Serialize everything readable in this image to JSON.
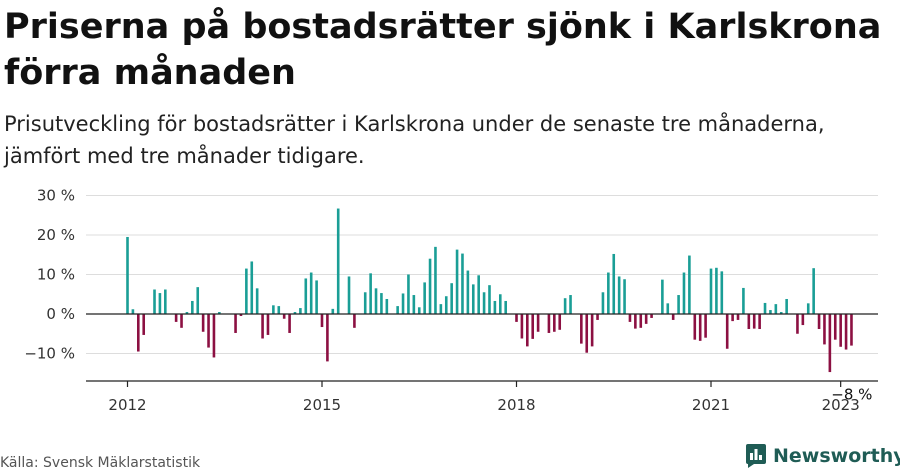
{
  "title": "Priserna på bostadsrätter sjönk i Karlskrona förra månaden",
  "subtitle": "Prisutveckling för bostadsrätter i Karlskrona under de senaste tre månaderna, jämfört med tre månader tidigare.",
  "source": "Källa: Svensk Mäklarstatistik",
  "logo": {
    "text": "Newsworthy",
    "icon": "bar-chart-icon",
    "color": "#1f5c55"
  },
  "colors": {
    "positive": "#1a9e96",
    "negative": "#8c1042",
    "grid": "#dddddd",
    "axis": "#222222"
  },
  "chart_data": {
    "type": "bar",
    "unit": "%",
    "y_ticks": [
      "30 %",
      "20 %",
      "10 %",
      "0 %",
      "−10 %"
    ],
    "y_tick_values": [
      30,
      20,
      10,
      0,
      -10
    ],
    "x_tick_labels": [
      "2012",
      "2015",
      "2018",
      "2021",
      "2023"
    ],
    "x_tick_dates": [
      "2012-01",
      "2015-01",
      "2018-01",
      "2021-01",
      "2023-01"
    ],
    "ylim": [
      -15,
      30
    ],
    "grid": true,
    "annotation": {
      "text": "−8 %",
      "date": "2022-12",
      "value": -8
    },
    "start": "2012-01",
    "end": "2022-12",
    "values": [
      19.5,
      1.2,
      -9.5,
      -5.3,
      0.0,
      6.2,
      5.3,
      6.2,
      0.0,
      -2.0,
      -3.5,
      0.5,
      3.3,
      6.8,
      -4.5,
      -8.5,
      -11.0,
      0.5,
      0.0,
      0.0,
      -4.8,
      -0.5,
      11.5,
      13.3,
      6.5,
      -6.2,
      -5.3,
      2.2,
      2.0,
      -1.2,
      -4.8,
      0.5,
      1.5,
      9.0,
      10.5,
      8.5,
      -3.3,
      -12.0,
      1.3,
      26.7,
      0.0,
      9.5,
      -3.5,
      0.0,
      5.5,
      10.3,
      6.5,
      5.3,
      3.8,
      0.0,
      2.0,
      5.2,
      10.0,
      4.8,
      1.7,
      8.0,
      14.0,
      17.0,
      2.5,
      4.5,
      7.8,
      16.3,
      15.3,
      11.0,
      7.5,
      9.8,
      5.5,
      7.3,
      3.3,
      5.0,
      3.3,
      0.0,
      -2.0,
      -6.2,
      -8.2,
      -6.3,
      -4.5,
      0.0,
      -4.8,
      -4.5,
      -4.0,
      4.0,
      4.8,
      0.0,
      -7.5,
      -9.8,
      -8.2,
      -1.5,
      5.5,
      10.5,
      15.2,
      9.5,
      8.8,
      -2.0,
      -3.7,
      -3.5,
      -2.5,
      -1.0,
      0.0,
      8.7,
      2.7,
      -1.5,
      4.8,
      10.5,
      14.8,
      -6.5,
      -6.8,
      -6.0,
      11.5,
      11.7,
      10.8,
      -8.8,
      -1.8,
      -1.5,
      6.6,
      -3.8,
      -3.7,
      -3.8,
      2.8,
      1.0,
      2.5,
      0.5,
      3.8,
      0.0,
      -5.0,
      -2.8,
      2.7,
      11.6,
      -3.8,
      -7.7,
      -14.7,
      -6.5,
      -8.3,
      -9.0,
      -8.0
    ]
  }
}
